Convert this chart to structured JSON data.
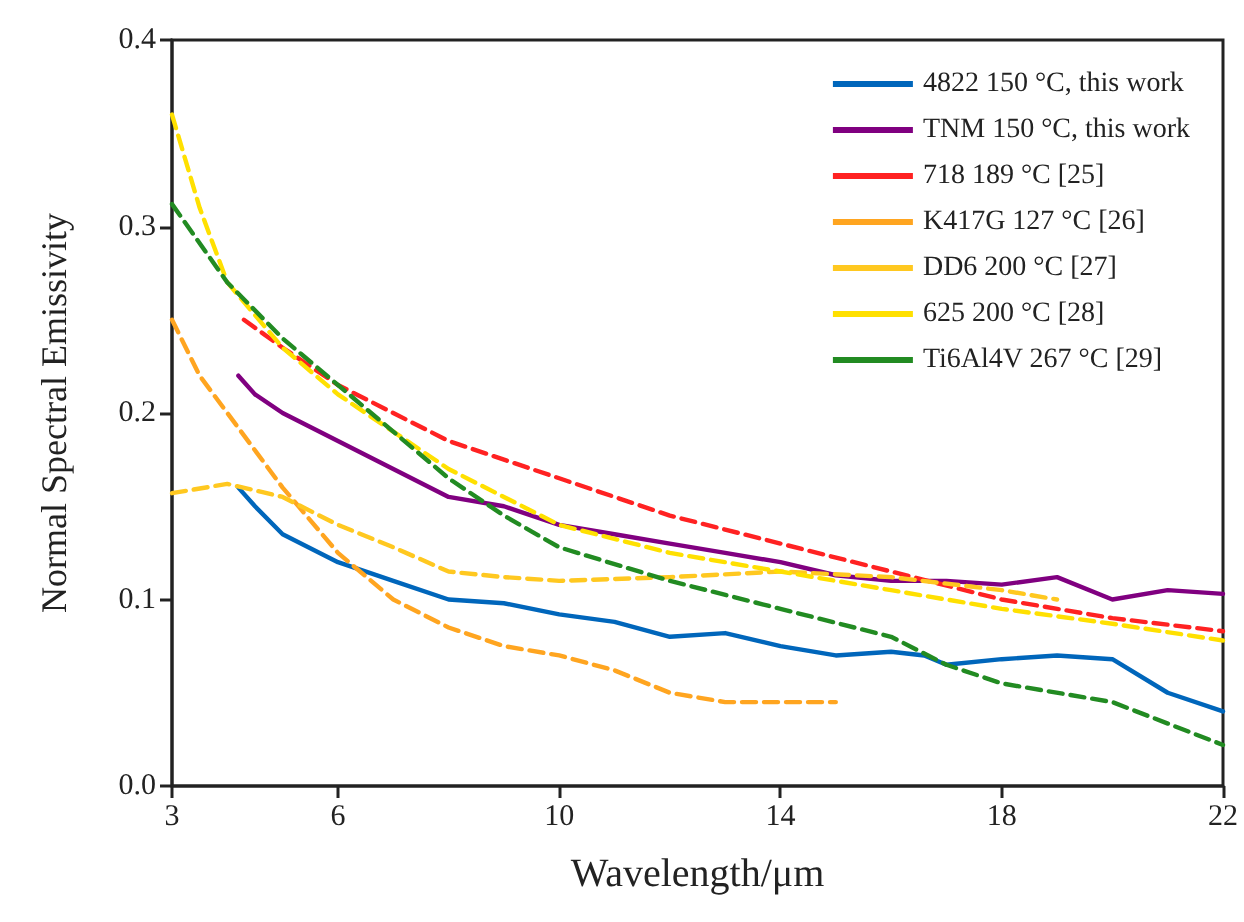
{
  "chart_data": {
    "type": "line",
    "xlabel": "Wavelength/μm",
    "ylabel": "Normal Spectral Emissivity",
    "xlim": [
      3,
      22
    ],
    "xticks": [
      3,
      6,
      10,
      14,
      18,
      22
    ],
    "ylim": [
      0,
      0.4
    ],
    "yticks": [
      {
        "value": 0,
        "label": "0.0"
      },
      0.1,
      0.2,
      0.3,
      0.4
    ],
    "grid": false,
    "legend": "top right",
    "marker": "none",
    "series": [
      {
        "name": "4822 150 °C, this work",
        "color": "#0066bb",
        "line_style": "solid",
        "x": [
          4.2,
          4.5,
          5,
          6,
          7,
          8,
          9,
          10,
          11,
          12,
          13,
          14,
          15,
          16,
          16.6,
          17,
          18,
          19,
          20,
          21,
          22
        ],
        "values": [
          0.16,
          0.15,
          0.135,
          0.12,
          0.11,
          0.1,
          0.098,
          0.092,
          0.088,
          0.08,
          0.082,
          0.075,
          0.07,
          0.072,
          0.07,
          0.065,
          0.068,
          0.07,
          0.068,
          0.05,
          0.04
        ]
      },
      {
        "name": "TNM 150 °C, this work",
        "color": "#800080",
        "line_style": "solid",
        "x": [
          4.2,
          4.5,
          5,
          6,
          7,
          8,
          9,
          10,
          11,
          12,
          13,
          14,
          15,
          16,
          17,
          18,
          19,
          20,
          21,
          22
        ],
        "values": [
          0.22,
          0.21,
          0.2,
          0.185,
          0.17,
          0.155,
          0.15,
          0.14,
          0.135,
          0.13,
          0.125,
          0.12,
          0.113,
          0.11,
          0.11,
          0.108,
          0.112,
          0.1,
          0.105,
          0.103
        ]
      },
      {
        "name": "718 189 °C [25]",
        "color": "#ff2222",
        "line_style": "dashed",
        "x": [
          4.3,
          5,
          6,
          7,
          8,
          10,
          12,
          14,
          16,
          18,
          20,
          22
        ],
        "values": [
          0.25,
          0.235,
          0.215,
          0.2,
          0.185,
          0.165,
          0.145,
          0.13,
          0.115,
          0.1,
          0.09,
          0.083
        ]
      },
      {
        "name": "K417G 127 °C [26]",
        "color": "#ffa520",
        "line_style": "dashed",
        "x": [
          3,
          3.5,
          4,
          5,
          6,
          7,
          8,
          9,
          10,
          11,
          12,
          13,
          14,
          15
        ],
        "values": [
          0.25,
          0.22,
          0.2,
          0.16,
          0.125,
          0.1,
          0.085,
          0.075,
          0.07,
          0.062,
          0.05,
          0.045,
          0.045,
          0.045
        ]
      },
      {
        "name": "DD6 200 °C [27]",
        "color": "#ffc820",
        "line_style": "dashed",
        "x": [
          3,
          4,
          5,
          6,
          7,
          8,
          9,
          10,
          12,
          14,
          16,
          18,
          19
        ],
        "values": [
          0.157,
          0.162,
          0.155,
          0.14,
          0.128,
          0.115,
          0.112,
          0.11,
          0.112,
          0.115,
          0.112,
          0.105,
          0.1
        ]
      },
      {
        "name": "625 200 °C [28]",
        "color": "#ffe000",
        "line_style": "dashed",
        "x": [
          3,
          3.5,
          4,
          5,
          6,
          7,
          8,
          9,
          10,
          12,
          14,
          16,
          18,
          20,
          22
        ],
        "values": [
          0.36,
          0.31,
          0.27,
          0.235,
          0.21,
          0.19,
          0.17,
          0.155,
          0.14,
          0.125,
          0.115,
          0.105,
          0.095,
          0.087,
          0.078
        ]
      },
      {
        "name": "Ti6Al4V 267 °C [29]",
        "color": "#228b22",
        "line_style": "dashed",
        "x": [
          3,
          4,
          5,
          6,
          7,
          8,
          9,
          10,
          12,
          14,
          16,
          17,
          18,
          20,
          22
        ],
        "values": [
          0.312,
          0.27,
          0.24,
          0.215,
          0.19,
          0.165,
          0.145,
          0.128,
          0.11,
          0.095,
          0.08,
          0.065,
          0.055,
          0.045,
          0.022
        ]
      }
    ]
  }
}
